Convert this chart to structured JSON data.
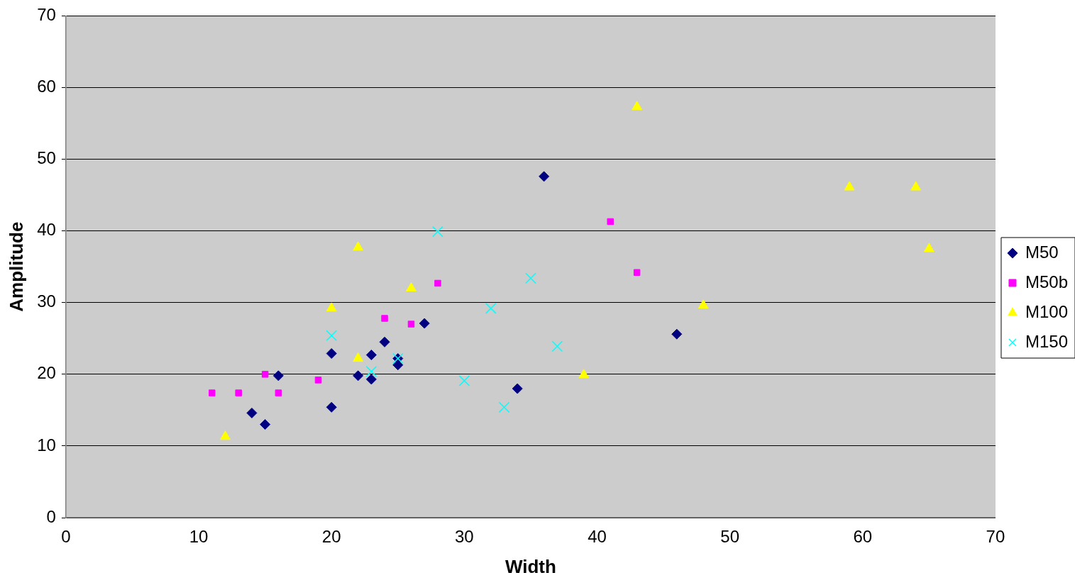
{
  "chart_data": {
    "type": "scatter",
    "xlabel": "Width",
    "ylabel": "Amplitude",
    "xlim": [
      0,
      70
    ],
    "xticks": [
      0,
      10,
      20,
      30,
      40,
      50,
      60,
      70
    ],
    "ylim": [
      0,
      70
    ],
    "yticks": [
      0,
      10,
      20,
      30,
      40,
      50,
      60,
      70
    ],
    "grid": "y",
    "legend": "right",
    "series": [
      {
        "name": "M50",
        "color": "#000080",
        "marker": "diamond",
        "x": [
          14,
          15,
          16,
          20,
          20,
          22,
          23,
          23,
          24,
          25,
          25,
          27,
          34,
          36,
          46
        ],
        "values": [
          14.6,
          13.0,
          19.8,
          22.9,
          15.4,
          19.8,
          22.7,
          19.3,
          24.5,
          22.2,
          21.3,
          27.1,
          18.0,
          47.6,
          25.6
        ]
      },
      {
        "name": "M50b",
        "color": "#ff00ff",
        "marker": "square",
        "x": [
          11,
          13,
          15,
          16,
          19,
          24,
          26,
          28,
          41,
          43
        ],
        "values": [
          17.4,
          17.4,
          20.0,
          17.4,
          19.2,
          27.8,
          27.0,
          32.7,
          41.3,
          34.2
        ]
      },
      {
        "name": "M100",
        "color": "#ffff00",
        "marker": "triangle",
        "x": [
          12,
          20,
          22,
          22,
          26,
          39,
          43,
          48,
          59,
          64,
          65
        ],
        "values": [
          11.3,
          29.2,
          37.7,
          22.2,
          32.0,
          19.9,
          57.3,
          29.6,
          46.1,
          46.1,
          37.5
        ]
      },
      {
        "name": "M150",
        "color": "#00ffff",
        "marker": "cross",
        "x": [
          20,
          23,
          25,
          28,
          30,
          32,
          33,
          35,
          37
        ],
        "values": [
          25.4,
          20.4,
          22.2,
          39.9,
          19.1,
          29.2,
          15.4,
          33.4,
          23.9
        ]
      }
    ]
  }
}
